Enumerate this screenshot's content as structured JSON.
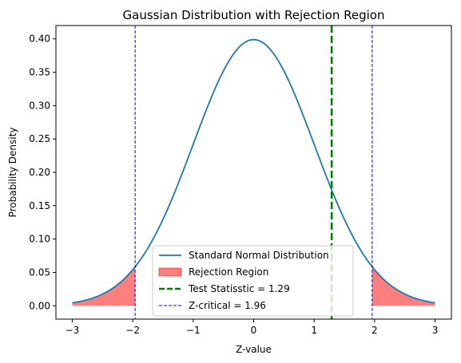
{
  "chart_data": {
    "type": "line",
    "title": "Gaussian Distribution with Rejection Region",
    "xlabel": "Z-value",
    "ylabel": "Probability Density",
    "xlim": [
      -3.27,
      3.27
    ],
    "ylim": [
      -0.02,
      0.42
    ],
    "xticks": [
      -3,
      -2,
      -1,
      0,
      1,
      2,
      3
    ],
    "xtick_labels": [
      "−3",
      "−2",
      "−1",
      "0",
      "1",
      "2",
      "3"
    ],
    "yticks": [
      0.0,
      0.05,
      0.1,
      0.15,
      0.2,
      0.25,
      0.3,
      0.35,
      0.4
    ],
    "ytick_labels": [
      "0.00",
      "0.05",
      "0.10",
      "0.15",
      "0.20",
      "0.25",
      "0.30",
      "0.35",
      "0.40"
    ],
    "grid": false,
    "legend_position": "lower-center",
    "series": [
      {
        "name": "Standard Normal Distribution",
        "kind": "line",
        "color": "#1f77b4",
        "function": "normal_pdf",
        "x_range": [
          -3,
          3
        ]
      },
      {
        "name": "Rejection Region",
        "kind": "fill",
        "color": "#ff0000",
        "alpha": 0.5,
        "regions": [
          [
            -3,
            -1.96
          ],
          [
            1.96,
            3
          ]
        ]
      },
      {
        "name": "Test Statisstic = 1.29",
        "kind": "vline",
        "x": 1.29,
        "color": "#008000",
        "style": "dashed"
      },
      {
        "name": "Z-critical = 1.96",
        "kind": "vline",
        "x": [
          -1.96,
          1.96
        ],
        "color": "#0000ff",
        "style": "dashed"
      }
    ]
  }
}
